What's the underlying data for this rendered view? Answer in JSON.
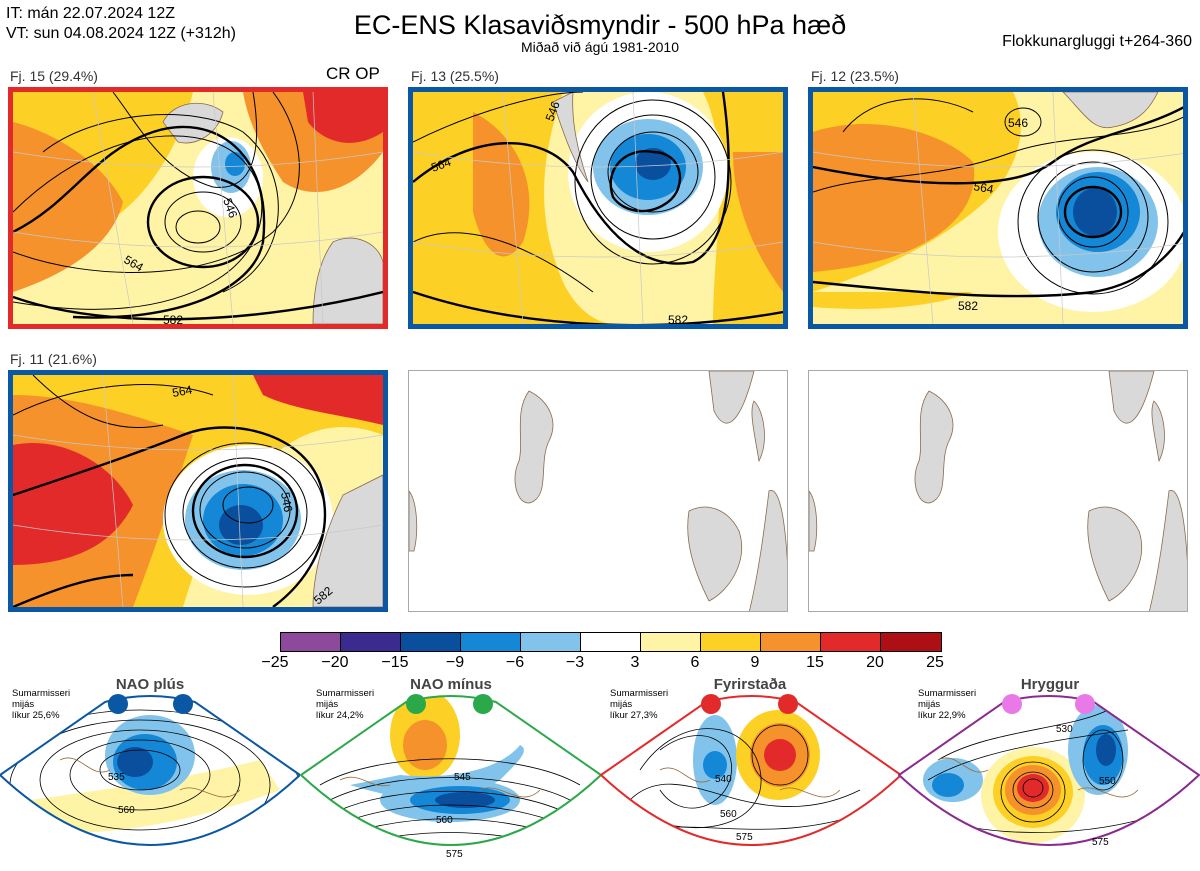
{
  "header": {
    "it_line": "IT: mán 22.07.2024 12Z",
    "vt_line": "VT: sun 04.08.2024 12Z  (+312h)",
    "title": "EC-ENS Klasaviðsmyndir - 500 hPa hæð",
    "subtitle": "Miðað við ágú 1981-2010",
    "window_label": "Flokkunargluggi t+264-360"
  },
  "panels": [
    {
      "label": "Fj. 15 (29.4%)",
      "tag": "CR OP",
      "frame": "#e32a2b",
      "contours": [
        "546",
        "564",
        "582"
      ]
    },
    {
      "label": "Fj. 13 (25.5%)",
      "tag": "",
      "frame": "#0a57a4",
      "contours": [
        "546",
        "564",
        "582"
      ]
    },
    {
      "label": "Fj. 12 (23.5%)",
      "tag": "",
      "frame": "#0a57a4",
      "contours": [
        "546",
        "564",
        "582"
      ]
    },
    {
      "label": "Fj. 11 (21.6%)",
      "tag": "",
      "frame": "#0a57a4",
      "contours": [
        "546",
        "564",
        "582"
      ]
    }
  ],
  "colorbar": {
    "ticks": [
      "−25",
      "−20",
      "−15",
      "−9",
      "−6",
      "−3",
      "3",
      "6",
      "9",
      "15",
      "20",
      "25"
    ],
    "colors": [
      "#8e4a9a",
      "#3b2b8f",
      "#0a4f9e",
      "#1487d6",
      "#82c3ec",
      "#ffffff",
      "#fff3a6",
      "#fdd025",
      "#f5922c",
      "#e32a2b",
      "#ad0f14"
    ]
  },
  "regimes": [
    {
      "title": "NAO plús",
      "note": [
        "Sumarmisseri",
        "mijás",
        "líkur 25,6%"
      ],
      "color": "#0a57a4",
      "contours": [
        "535",
        "560"
      ]
    },
    {
      "title": "NAO mínus",
      "note": [
        "Sumarmisseri",
        "mijás",
        "líkur 24,2%"
      ],
      "color": "#2ba84a",
      "contours": [
        "545",
        "560",
        "575"
      ]
    },
    {
      "title": "Fyrirstaða",
      "note": [
        "Sumarmisseri",
        "mijás",
        "líkur 27,3%"
      ],
      "color": "#e32a2b",
      "contours": [
        "540",
        "560",
        "575"
      ]
    },
    {
      "title": "Hryggur",
      "note": [
        "Sumarmisseri",
        "mijás",
        "líkur 22,9%"
      ],
      "color": "#8a2a8f",
      "contours": [
        "530",
        "550",
        "575"
      ]
    }
  ]
}
